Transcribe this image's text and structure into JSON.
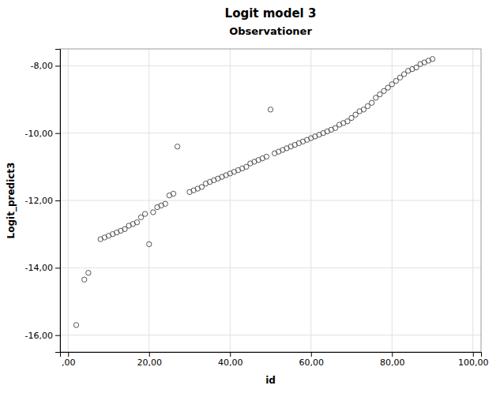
{
  "chart_data": {
    "type": "scatter",
    "title": "Logit model 3",
    "subtitle": "Observationer",
    "xlabel": "id",
    "ylabel": "Logit_predict3",
    "xlim": [
      -2,
      102
    ],
    "ylim": [
      -16.5,
      -7.5
    ],
    "xticks": [
      {
        "value": 0,
        "label": ",00"
      },
      {
        "value": 20,
        "label": "20,00"
      },
      {
        "value": 40,
        "label": "40,00"
      },
      {
        "value": 60,
        "label": "60,00"
      },
      {
        "value": 80,
        "label": "80,00"
      },
      {
        "value": 100,
        "label": "100,00"
      }
    ],
    "yticks": [
      {
        "value": -16,
        "label": "-16,00"
      },
      {
        "value": -14,
        "label": "-14,00"
      },
      {
        "value": -12,
        "label": "-12,00"
      },
      {
        "value": -10,
        "label": "-10,00"
      },
      {
        "value": -8,
        "label": "-8,00"
      }
    ],
    "grid": true,
    "color": "#555555",
    "x": [
      2,
      4,
      5,
      8,
      9,
      10,
      11,
      12,
      13,
      14,
      15,
      16,
      17,
      18,
      20,
      19,
      21,
      22,
      23,
      24,
      25,
      26,
      27,
      30,
      31,
      32,
      33,
      34,
      35,
      36,
      37,
      38,
      39,
      40,
      41,
      42,
      43,
      44,
      45,
      50,
      46,
      47,
      48,
      49,
      51,
      52,
      53,
      54,
      55,
      56,
      57,
      58,
      59,
      60,
      61,
      62,
      63,
      64,
      65,
      66,
      67,
      68,
      69,
      70,
      71,
      72,
      73,
      74,
      75,
      76,
      77,
      78,
      79,
      80,
      81,
      82,
      83,
      84,
      85,
      86,
      87,
      88,
      89,
      90
    ],
    "values": [
      -15.7,
      -14.35,
      -14.15,
      -13.15,
      -13.1,
      -13.05,
      -13.0,
      -12.95,
      -12.9,
      -12.85,
      -12.75,
      -12.7,
      -12.65,
      -12.5,
      -13.3,
      -12.4,
      -12.35,
      -12.2,
      -12.15,
      -12.1,
      -11.85,
      -11.8,
      -10.4,
      -11.75,
      -11.7,
      -11.65,
      -11.6,
      -11.5,
      -11.45,
      -11.4,
      -11.35,
      -11.3,
      -11.25,
      -11.2,
      -11.15,
      -11.1,
      -11.05,
      -11.0,
      -10.9,
      -9.3,
      -10.85,
      -10.8,
      -10.75,
      -10.7,
      -10.6,
      -10.55,
      -10.5,
      -10.45,
      -10.4,
      -10.35,
      -10.3,
      -10.25,
      -10.2,
      -10.15,
      -10.1,
      -10.05,
      -10.0,
      -9.95,
      -9.9,
      -9.85,
      -9.75,
      -9.7,
      -9.65,
      -9.55,
      -9.45,
      -9.35,
      -9.3,
      -9.2,
      -9.1,
      -8.95,
      -8.85,
      -8.75,
      -8.65,
      -8.55,
      -8.45,
      -8.35,
      -8.25,
      -8.15,
      -8.1,
      -8.05,
      -7.95,
      -7.9,
      -7.85,
      -7.8
    ]
  }
}
